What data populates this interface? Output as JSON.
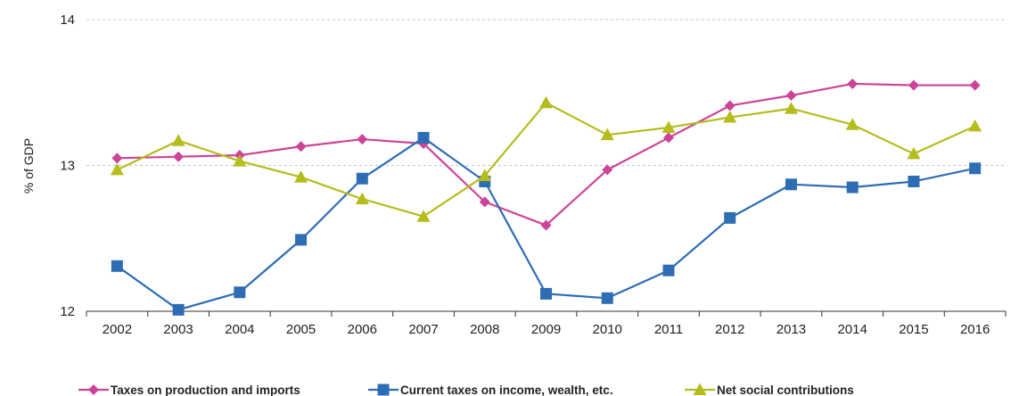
{
  "chart_data": {
    "type": "line",
    "ylabel": "% of GDP",
    "xlabel": "",
    "ylim": [
      12,
      14
    ],
    "yticks": [
      12,
      13,
      14
    ],
    "grid": true,
    "legend_position": "bottom",
    "categories": [
      "2002",
      "2003",
      "2004",
      "2005",
      "2006",
      "2007",
      "2008",
      "2009",
      "2010",
      "2011",
      "2012",
      "2013",
      "2014",
      "2015",
      "2016"
    ],
    "series": [
      {
        "name": "Taxes on production and imports",
        "color": "#cc4499",
        "marker": "diamond",
        "values": [
          13.05,
          13.06,
          13.07,
          13.13,
          13.18,
          13.15,
          12.75,
          12.59,
          12.97,
          13.19,
          13.41,
          13.48,
          13.56,
          13.55,
          13.55
        ]
      },
      {
        "name": "Current taxes on income, wealth, etc.",
        "color": "#2e6db4",
        "marker": "square",
        "values": [
          12.31,
          12.01,
          12.13,
          12.49,
          12.91,
          13.19,
          12.89,
          12.12,
          12.09,
          12.28,
          12.64,
          12.87,
          12.85,
          12.89,
          12.98
        ]
      },
      {
        "name": "Net social contributions",
        "color": "#b5bd1c",
        "marker": "triangle",
        "values": [
          12.97,
          13.17,
          13.03,
          12.92,
          12.77,
          12.65,
          12.93,
          13.43,
          13.21,
          13.26,
          13.33,
          13.39,
          13.28,
          13.08,
          13.27
        ]
      }
    ]
  }
}
